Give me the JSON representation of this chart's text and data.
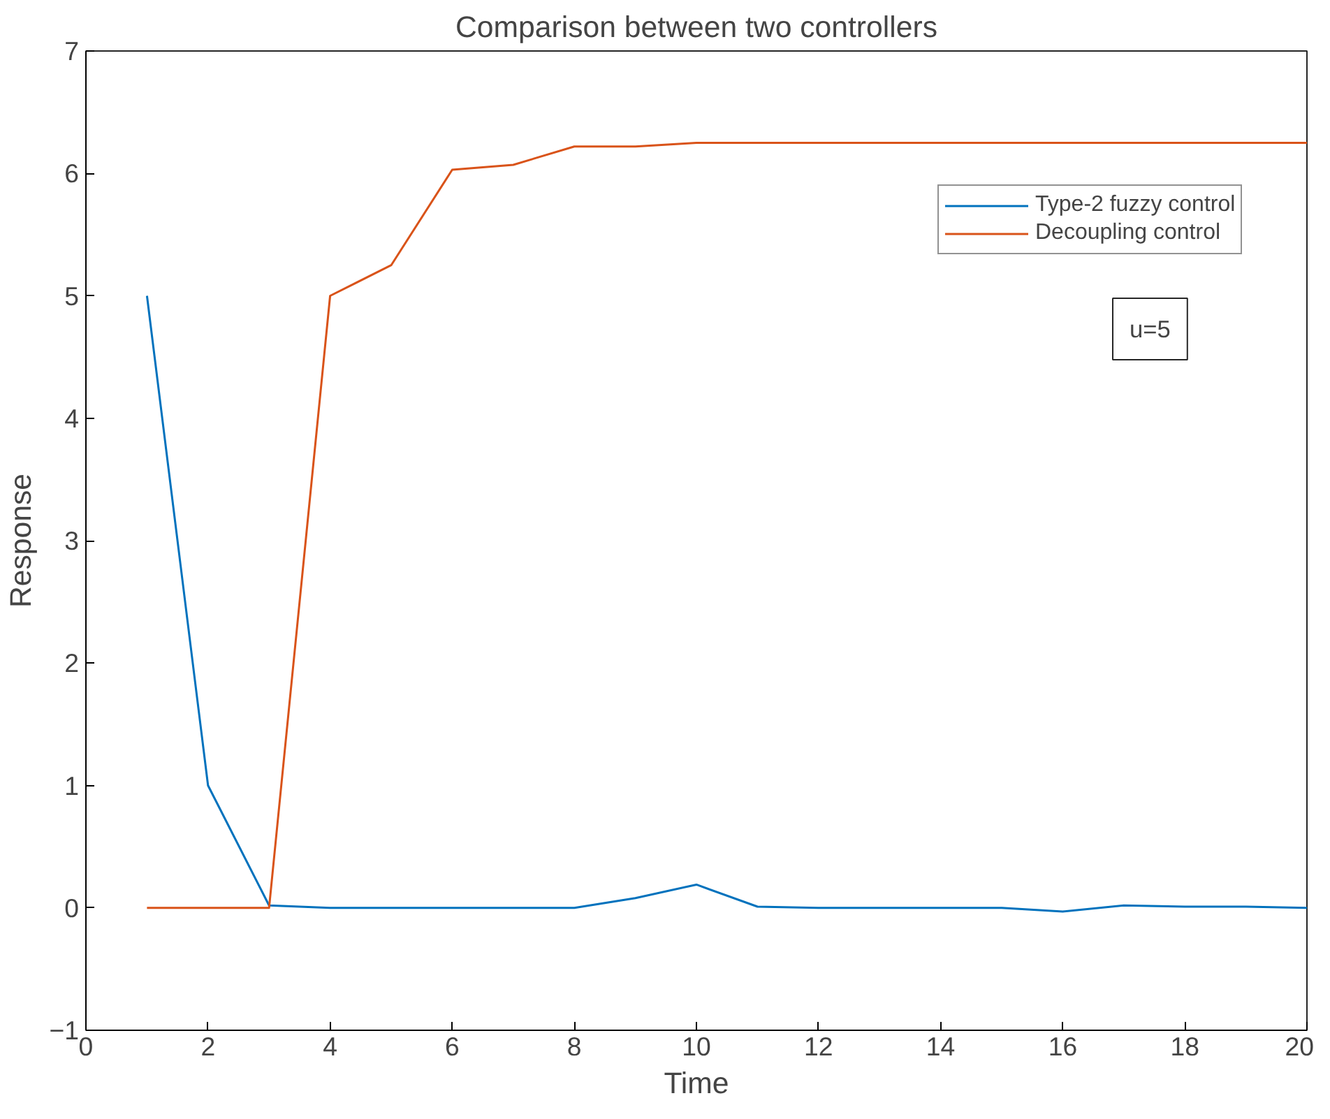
{
  "chart_data": {
    "type": "line",
    "title": "Comparison between two controllers",
    "xlabel": "Time",
    "ylabel": "Response",
    "x": [
      1,
      2,
      3,
      4,
      5,
      6,
      7,
      8,
      9,
      10,
      11,
      12,
      13,
      14,
      15,
      16,
      17,
      18,
      19,
      20
    ],
    "series": [
      {
        "name": "Type-2 fuzzy control",
        "color": "#0072bd",
        "values": [
          5,
          1,
          0.02,
          0,
          0,
          0,
          0,
          0,
          0.08,
          0.19,
          0.01,
          0,
          0,
          0,
          0,
          -0.03,
          0.02,
          0.01,
          0.01,
          0
        ]
      },
      {
        "name": "Decoupling control",
        "color": "#d95319",
        "values": [
          0,
          0,
          0,
          5,
          5.25,
          6.03,
          6.07,
          6.22,
          6.22,
          6.25,
          6.25,
          6.25,
          6.25,
          6.25,
          6.25,
          6.25,
          6.25,
          6.25,
          6.25,
          6.25
        ]
      }
    ],
    "xlim": [
      0,
      20
    ],
    "xticks": [
      0,
      2,
      4,
      6,
      8,
      10,
      12,
      14,
      16,
      18,
      20
    ],
    "ylim": [
      -1,
      7
    ],
    "yticks": [
      -1,
      0,
      1,
      2,
      3,
      4,
      5,
      6,
      7
    ],
    "grid": false,
    "legend": "top right",
    "marker": "none",
    "line_style": "solid",
    "annotations": [
      "u=5"
    ]
  }
}
